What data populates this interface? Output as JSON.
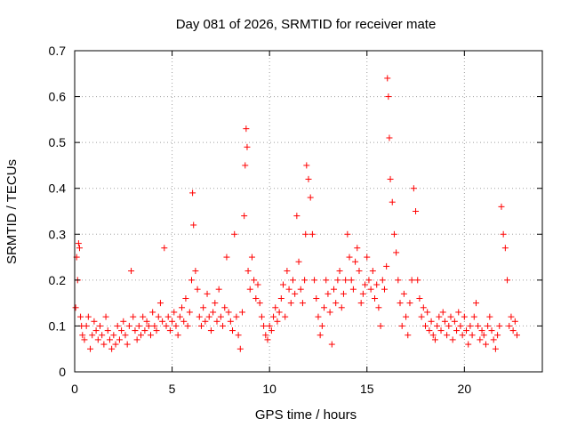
{
  "chart_data": {
    "type": "scatter",
    "title": "Day 081 of 2026, SRMTID for receiver mate",
    "xlabel": "GPS time / hours",
    "ylabel": "SRMTID / TECUs",
    "xlim": [
      0,
      24
    ],
    "ylim": [
      0,
      0.7
    ],
    "xticks": [
      0,
      5,
      10,
      15,
      20
    ],
    "yticks": [
      0,
      0.1,
      0.2,
      0.3,
      0.4,
      0.5,
      0.6,
      0.7
    ],
    "xtick_labels": [
      "0",
      "5",
      "10",
      "15",
      "20"
    ],
    "ytick_labels": [
      "0",
      "0.1",
      "0.2",
      "0.3",
      "0.4",
      "0.5",
      "0.6",
      "0.7"
    ],
    "grid": true,
    "marker": "+",
    "color": "#ff0000",
    "series": [
      {
        "name": "SRMTID",
        "x": [
          0.05,
          0.1,
          0.15,
          0.2,
          0.25,
          0.3,
          0.35,
          0.4,
          0.5,
          0.6,
          0.7,
          0.8,
          0.9,
          1.0,
          1.1,
          1.2,
          1.3,
          1.4,
          1.5,
          1.6,
          1.7,
          1.8,
          1.9,
          2.0,
          2.1,
          2.2,
          2.3,
          2.4,
          2.5,
          2.6,
          2.7,
          2.8,
          2.9,
          3.0,
          3.1,
          3.2,
          3.3,
          3.4,
          3.5,
          3.6,
          3.7,
          3.8,
          3.9,
          4.0,
          4.1,
          4.2,
          4.3,
          4.4,
          4.5,
          4.6,
          4.7,
          4.8,
          4.9,
          5.0,
          5.1,
          5.2,
          5.3,
          5.4,
          5.5,
          5.6,
          5.7,
          5.8,
          5.9,
          6.0,
          6.05,
          6.1,
          6.2,
          6.3,
          6.4,
          6.5,
          6.6,
          6.7,
          6.8,
          6.9,
          7.0,
          7.1,
          7.2,
          7.3,
          7.4,
          7.5,
          7.6,
          7.7,
          7.8,
          7.9,
          8.0,
          8.1,
          8.2,
          8.3,
          8.4,
          8.5,
          8.6,
          8.7,
          8.75,
          8.8,
          8.85,
          8.9,
          9.0,
          9.1,
          9.2,
          9.3,
          9.4,
          9.5,
          9.6,
          9.7,
          9.8,
          9.9,
          10.0,
          10.1,
          10.2,
          10.3,
          10.4,
          10.5,
          10.6,
          10.7,
          10.8,
          10.9,
          11.0,
          11.1,
          11.2,
          11.3,
          11.4,
          11.5,
          11.6,
          11.7,
          11.8,
          11.85,
          11.9,
          12.0,
          12.1,
          12.2,
          12.3,
          12.4,
          12.5,
          12.6,
          12.7,
          12.8,
          12.9,
          13.0,
          13.1,
          13.2,
          13.3,
          13.4,
          13.5,
          13.6,
          13.7,
          13.8,
          13.9,
          14.0,
          14.1,
          14.2,
          14.3,
          14.4,
          14.5,
          14.6,
          14.7,
          14.8,
          14.9,
          15.0,
          15.1,
          15.2,
          15.3,
          15.4,
          15.5,
          15.6,
          15.7,
          15.8,
          15.9,
          16.0,
          16.05,
          16.1,
          16.15,
          16.2,
          16.3,
          16.4,
          16.5,
          16.6,
          16.7,
          16.8,
          16.9,
          17.0,
          17.1,
          17.2,
          17.3,
          17.4,
          17.5,
          17.6,
          17.7,
          17.8,
          17.9,
          18.0,
          18.1,
          18.2,
          18.3,
          18.4,
          18.5,
          18.6,
          18.7,
          18.8,
          18.9,
          19.0,
          19.1,
          19.2,
          19.3,
          19.4,
          19.5,
          19.6,
          19.7,
          19.8,
          19.9,
          20.0,
          20.1,
          20.2,
          20.3,
          20.4,
          20.5,
          20.6,
          20.7,
          20.8,
          20.9,
          21.0,
          21.1,
          21.2,
          21.3,
          21.4,
          21.5,
          21.6,
          21.7,
          21.8,
          21.9,
          22.0,
          22.1,
          22.2,
          22.3,
          22.4,
          22.5,
          22.6,
          22.7
        ],
        "y": [
          0.14,
          0.25,
          0.2,
          0.28,
          0.27,
          0.12,
          0.1,
          0.08,
          0.07,
          0.1,
          0.12,
          0.05,
          0.08,
          0.11,
          0.09,
          0.07,
          0.1,
          0.08,
          0.06,
          0.12,
          0.09,
          0.07,
          0.05,
          0.08,
          0.06,
          0.1,
          0.07,
          0.09,
          0.11,
          0.08,
          0.06,
          0.1,
          0.22,
          0.12,
          0.09,
          0.07,
          0.1,
          0.08,
          0.12,
          0.09,
          0.11,
          0.1,
          0.08,
          0.13,
          0.1,
          0.09,
          0.12,
          0.15,
          0.11,
          0.27,
          0.1,
          0.12,
          0.09,
          0.11,
          0.13,
          0.1,
          0.08,
          0.12,
          0.14,
          0.11,
          0.16,
          0.1,
          0.13,
          0.2,
          0.39,
          0.32,
          0.22,
          0.18,
          0.12,
          0.1,
          0.14,
          0.11,
          0.17,
          0.12,
          0.09,
          0.13,
          0.15,
          0.11,
          0.18,
          0.12,
          0.1,
          0.14,
          0.25,
          0.13,
          0.11,
          0.09,
          0.3,
          0.12,
          0.08,
          0.05,
          0.13,
          0.34,
          0.45,
          0.53,
          0.49,
          0.22,
          0.18,
          0.25,
          0.2,
          0.16,
          0.19,
          0.15,
          0.12,
          0.1,
          0.08,
          0.07,
          0.1,
          0.09,
          0.12,
          0.14,
          0.11,
          0.13,
          0.16,
          0.19,
          0.12,
          0.22,
          0.18,
          0.15,
          0.2,
          0.17,
          0.34,
          0.24,
          0.18,
          0.15,
          0.2,
          0.3,
          0.45,
          0.42,
          0.38,
          0.3,
          0.2,
          0.16,
          0.12,
          0.08,
          0.1,
          0.14,
          0.2,
          0.17,
          0.13,
          0.06,
          0.18,
          0.15,
          0.2,
          0.22,
          0.14,
          0.17,
          0.2,
          0.3,
          0.25,
          0.2,
          0.18,
          0.24,
          0.27,
          0.22,
          0.15,
          0.17,
          0.19,
          0.25,
          0.2,
          0.18,
          0.22,
          0.16,
          0.19,
          0.14,
          0.1,
          0.2,
          0.18,
          0.23,
          0.64,
          0.6,
          0.51,
          0.42,
          0.37,
          0.3,
          0.26,
          0.2,
          0.15,
          0.1,
          0.17,
          0.12,
          0.08,
          0.15,
          0.2,
          0.4,
          0.35,
          0.2,
          0.16,
          0.12,
          0.14,
          0.1,
          0.13,
          0.09,
          0.11,
          0.08,
          0.07,
          0.1,
          0.12,
          0.09,
          0.13,
          0.11,
          0.08,
          0.1,
          0.12,
          0.07,
          0.11,
          0.09,
          0.13,
          0.1,
          0.08,
          0.12,
          0.09,
          0.06,
          0.1,
          0.08,
          0.12,
          0.15,
          0.1,
          0.07,
          0.09,
          0.08,
          0.06,
          0.1,
          0.12,
          0.09,
          0.07,
          0.05,
          0.08,
          0.1,
          0.36,
          0.3,
          0.27,
          0.2,
          0.1,
          0.12,
          0.09,
          0.11,
          0.08
        ]
      }
    ]
  }
}
